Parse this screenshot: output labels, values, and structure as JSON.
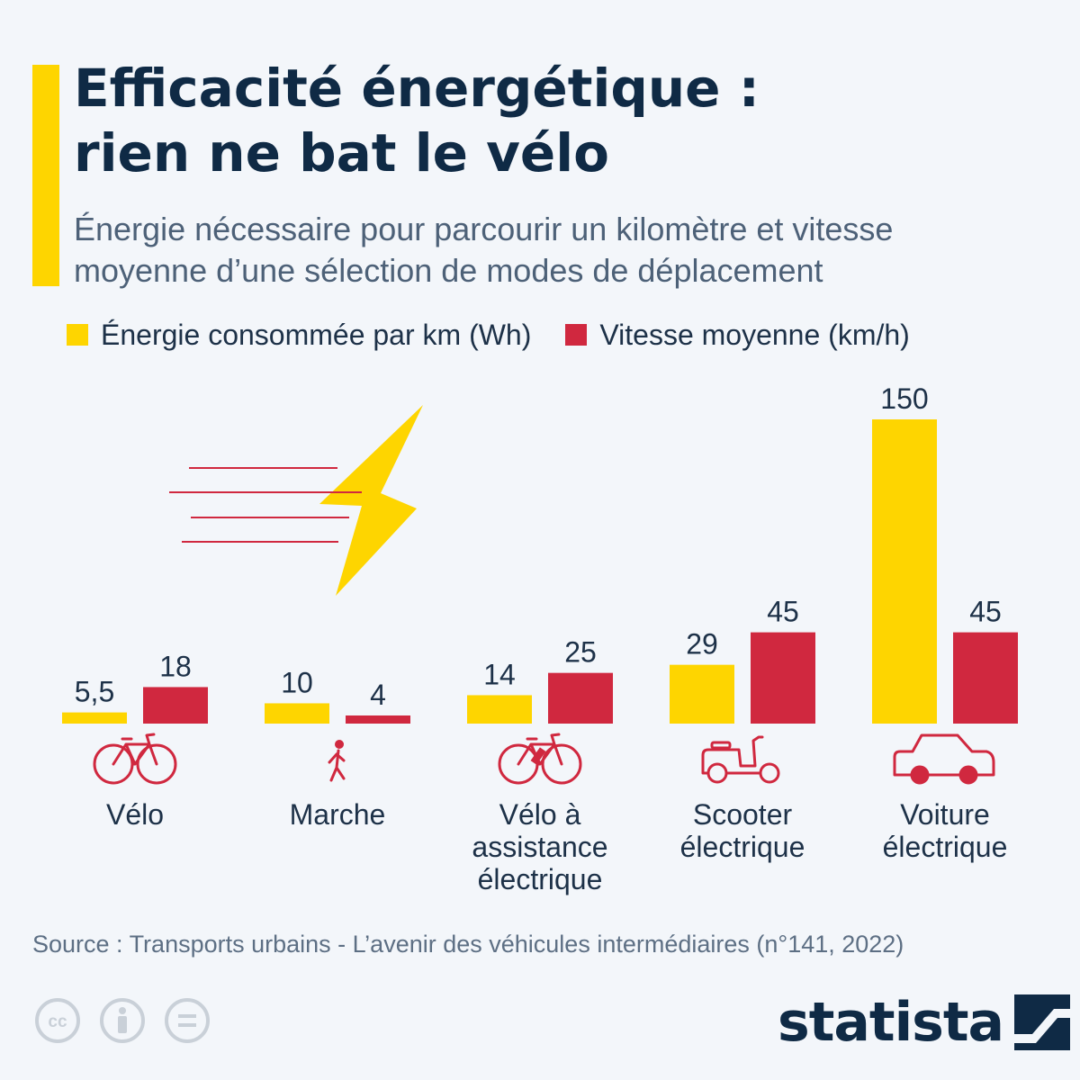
{
  "title_lines": [
    "Efficacité énergétique :",
    "rien ne bat le vélo"
  ],
  "subtitle_lines": [
    "Énergie nécessaire pour parcourir un kilomètre et vitesse",
    "moyenne d’une sélection de modes de déplacement"
  ],
  "colors": {
    "energy": "#fed500",
    "speed": "#d0283f",
    "text": "#0f2a45",
    "accent": "#fed500"
  },
  "chart_data": {
    "type": "bar",
    "title": "Efficacité énergétique : rien ne bat le vélo",
    "categories": [
      "Vélo",
      "Marche",
      "Vélo à assistance électrique",
      "Scooter électrique",
      "Voiture électrique"
    ],
    "category_lines": [
      [
        "Vélo"
      ],
      [
        "Marche"
      ],
      [
        "Vélo à",
        "assistance",
        "électrique"
      ],
      [
        "Scooter",
        "électrique"
      ],
      [
        "Voiture",
        "électrique"
      ]
    ],
    "category_icons": [
      "bicycle-icon",
      "walking-person-icon",
      "e-bike-icon",
      "scooter-icon",
      "car-icon"
    ],
    "series": [
      {
        "name": "Énergie consommée par km (Wh)",
        "values": [
          5.5,
          10,
          14,
          29,
          150
        ],
        "labels": [
          "5,5",
          "10",
          "14",
          "29",
          "150"
        ]
      },
      {
        "name": "Vitesse moyenne (km/h)",
        "values": [
          18,
          4,
          25,
          45,
          45
        ],
        "labels": [
          "18",
          "4",
          "25",
          "45",
          "45"
        ]
      }
    ],
    "ylim": [
      0,
      150
    ],
    "grid": false,
    "legend_position": "top-left"
  },
  "source": "Source : Transports urbains - L’avenir des véhicules intermédiaires (n°141, 2022)",
  "brand": "statista",
  "license_icons": [
    "creative-commons-icon",
    "attribution-icon",
    "no-derivatives-icon"
  ]
}
